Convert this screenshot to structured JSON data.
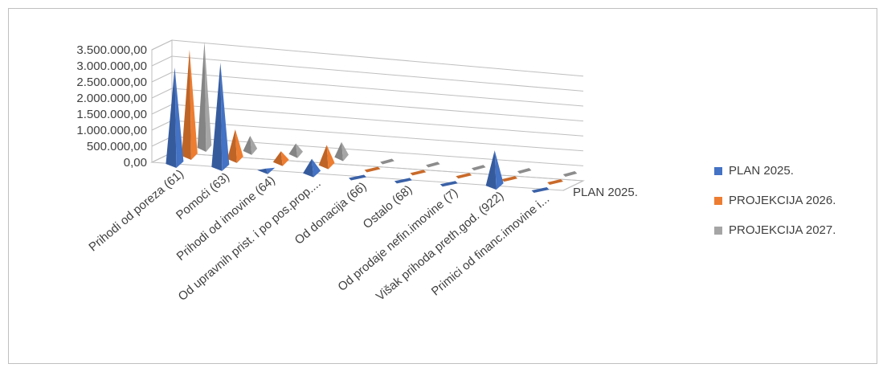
{
  "chart_data": {
    "type": "bar",
    "subtype": "3d-pyramid",
    "title": "",
    "xlabel": "",
    "ylabel": "",
    "ylim": [
      0,
      3500000
    ],
    "y_ticks": [
      "0,00",
      "500.000,00",
      "1.000.000,00",
      "1.500.000,00",
      "2.000.000,00",
      "2.500.000,00",
      "3.000.000,00",
      "3.500.000,00"
    ],
    "depth_axis_label": "PLAN 2025.",
    "grid": true,
    "legend_position": "right",
    "categories": [
      "Prihodi od poreza (61)",
      "Pomoći (63)",
      "Prihodi od imovine (64)",
      "Od upravnih prist. i po pos.prop....",
      "Od donacija (66)",
      "Ostalo (68)",
      "Od prodaje nefin.imovine (7)",
      "Višak prihoda preth.god. (922)",
      "Primici od financ.imovine  i..."
    ],
    "series": [
      {
        "name": "PLAN 2025.",
        "color": "#4472C4",
        "values": [
          3000000,
          3250000,
          50000,
          450000,
          0,
          0,
          0,
          1100000,
          0
        ]
      },
      {
        "name": "PROJEKCIJA 2026.",
        "color": "#ED7D31",
        "values": [
          3400000,
          950000,
          350000,
          650000,
          0,
          0,
          0,
          0,
          0
        ]
      },
      {
        "name": "PROJEKCIJA 2027.",
        "color": "#A5A5A5",
        "values": [
          3500000,
          500000,
          350000,
          500000,
          0,
          0,
          0,
          0,
          0
        ]
      }
    ]
  }
}
